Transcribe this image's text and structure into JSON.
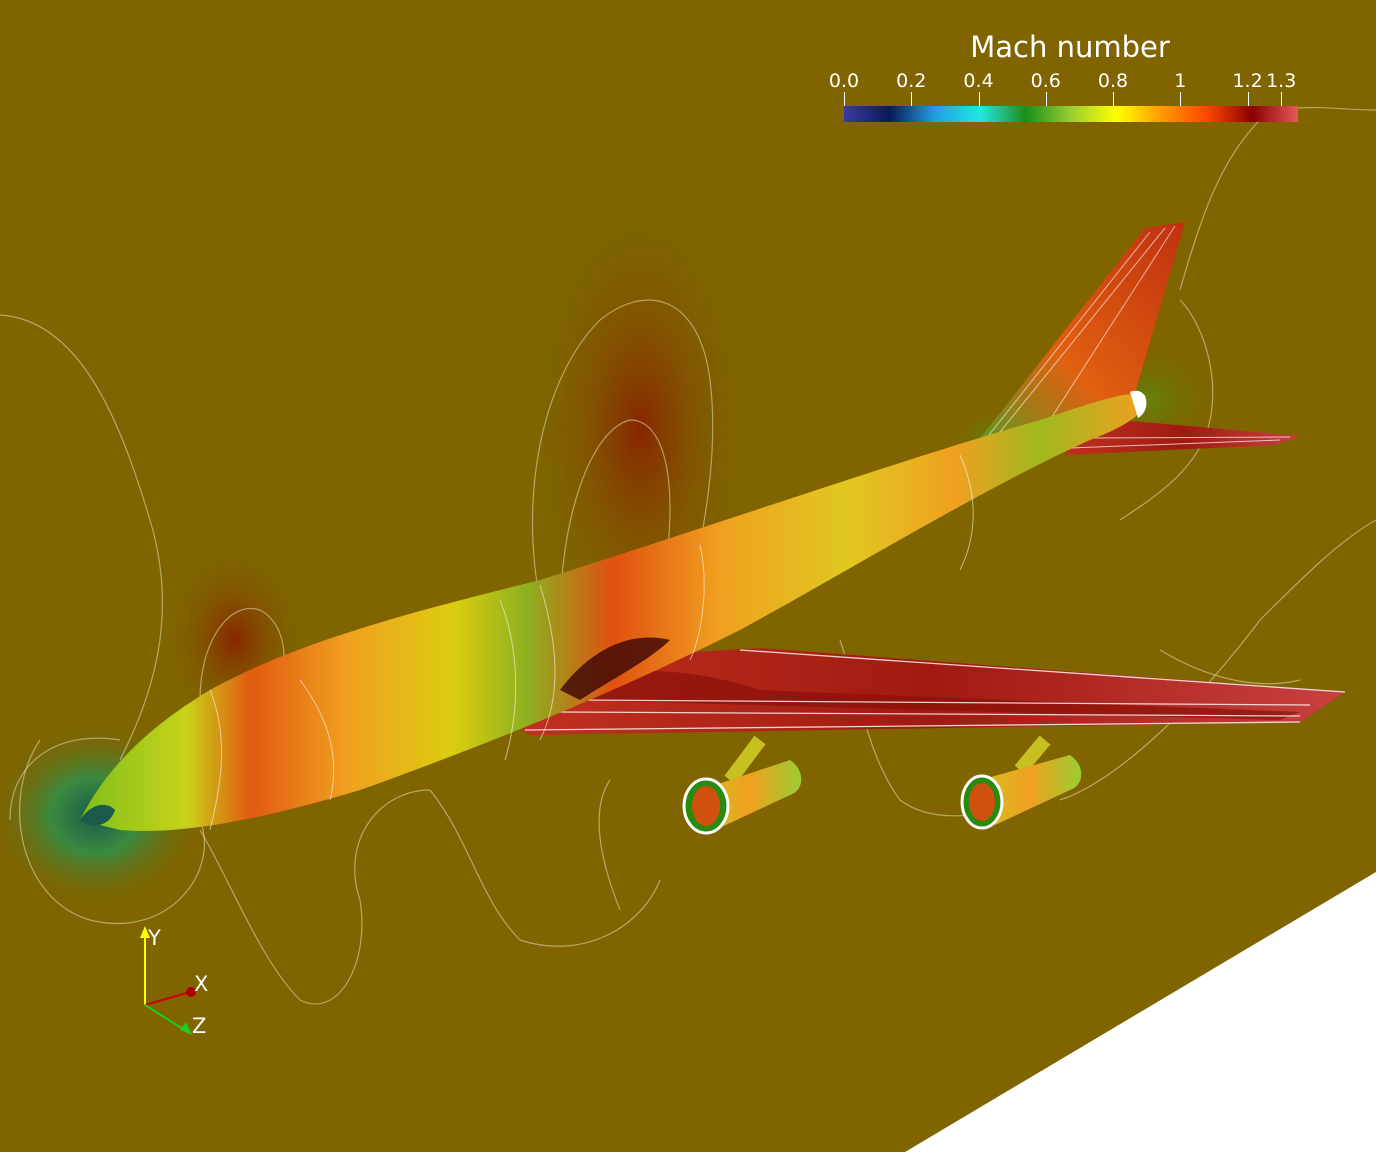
{
  "legend": {
    "title": "Mach number",
    "ticks": [
      "0.0",
      "0.2",
      "0.4",
      "0.6",
      "0.8",
      "1",
      "1.2",
      "1.3"
    ],
    "tick_values": [
      0.0,
      0.2,
      0.4,
      0.6,
      0.8,
      1.0,
      1.2,
      1.3
    ],
    "range": [
      0.0,
      1.35
    ],
    "colormap": [
      "#3b3ba3",
      "#0a1a5a",
      "#1f9fe0",
      "#23e6e6",
      "#1a8f1a",
      "#9acd32",
      "#ffff00",
      "#ff9a00",
      "#ff4500",
      "#8b0000",
      "#e85a5a"
    ]
  },
  "axes": {
    "y_label": "Y",
    "x_label": "X",
    "z_label": "Z"
  },
  "colors": {
    "background": "#7f6400",
    "blank_region": "#ffffff"
  }
}
